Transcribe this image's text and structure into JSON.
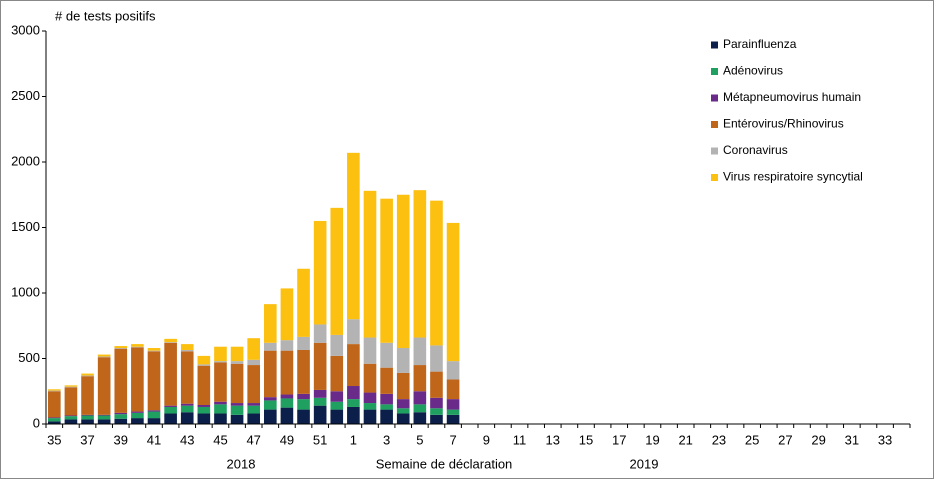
{
  "chart_data": {
    "type": "stacked_bar",
    "y_label": "# de tests positifs",
    "x_label": "Semaine de déclaration",
    "annotations": [
      "2018",
      "2019"
    ],
    "categories": [
      "35",
      null,
      "37",
      null,
      "39",
      null,
      "41",
      null,
      "43",
      null,
      "45",
      null,
      "47",
      null,
      "49",
      null,
      "51",
      null,
      "1",
      null,
      "3",
      null,
      "5",
      null,
      "7",
      null,
      "9",
      null,
      "11",
      null,
      "13",
      null,
      "15",
      null,
      "17",
      null,
      "19",
      null,
      "21",
      null,
      "23",
      null,
      "25",
      null,
      "27",
      null,
      "29",
      null,
      "31",
      null,
      "33",
      null
    ],
    "series": [
      {
        "name": "Parainfluenza",
        "color": "#0c1f4a",
        "values": [
          20,
          35,
          35,
          35,
          40,
          45,
          45,
          80,
          90,
          80,
          80,
          70,
          80,
          110,
          125,
          110,
          140,
          110,
          130,
          110,
          110,
          80,
          90,
          70,
          70,
          null,
          null,
          null,
          null,
          null,
          null,
          null,
          null,
          null,
          null,
          null,
          null,
          null,
          null,
          null,
          null,
          null,
          null,
          null,
          null,
          null,
          null,
          null,
          null,
          null,
          null,
          null
        ]
      },
      {
        "name": "Adénovirus",
        "color": "#1fa060",
        "values": [
          25,
          25,
          30,
          30,
          35,
          40,
          50,
          50,
          50,
          50,
          70,
          70,
          60,
          70,
          70,
          80,
          60,
          60,
          60,
          50,
          40,
          40,
          60,
          50,
          40,
          null,
          null,
          null,
          null,
          null,
          null,
          null,
          null,
          null,
          null,
          null,
          null,
          null,
          null,
          null,
          null,
          null,
          null,
          null,
          null,
          null,
          null,
          null,
          null,
          null,
          null,
          null
        ]
      },
      {
        "name": "Métapneumovirus humain",
        "color": "#6a2a8a",
        "values": [
          5,
          5,
          5,
          5,
          10,
          10,
          10,
          10,
          15,
          15,
          20,
          20,
          20,
          25,
          30,
          40,
          60,
          80,
          100,
          80,
          80,
          70,
          100,
          80,
          80,
          null,
          null,
          null,
          null,
          null,
          null,
          null,
          null,
          null,
          null,
          null,
          null,
          null,
          null,
          null,
          null,
          null,
          null,
          null,
          null,
          null,
          null,
          null,
          null,
          null,
          null,
          null
        ]
      },
      {
        "name": "Entérovirus/Rhinovirus",
        "color": "#c0661b",
        "values": [
          200,
          215,
          295,
          440,
          490,
          490,
          450,
          480,
          400,
          300,
          300,
          300,
          290,
          355,
          335,
          335,
          360,
          270,
          320,
          220,
          200,
          200,
          200,
          200,
          150,
          null,
          null,
          null,
          null,
          null,
          null,
          null,
          null,
          null,
          null,
          null,
          null,
          null,
          null,
          null,
          null,
          null,
          null,
          null,
          null,
          null,
          null,
          null,
          null,
          null,
          null,
          null
        ]
      },
      {
        "name": "Coronavirus",
        "color": "#b3b3b3",
        "values": [
          5,
          5,
          5,
          5,
          5,
          5,
          5,
          5,
          10,
          10,
          10,
          20,
          40,
          60,
          80,
          100,
          140,
          160,
          190,
          200,
          190,
          190,
          210,
          200,
          140,
          null,
          null,
          null,
          null,
          null,
          null,
          null,
          null,
          null,
          null,
          null,
          null,
          null,
          null,
          null,
          null,
          null,
          null,
          null,
          null,
          null,
          null,
          null,
          null,
          null,
          null,
          null
        ]
      },
      {
        "name": "Virus respiratoire syncytial",
        "color": "#fcc010",
        "values": [
          10,
          10,
          15,
          15,
          15,
          20,
          20,
          25,
          45,
          65,
          110,
          110,
          165,
          295,
          395,
          520,
          790,
          970,
          1270,
          1120,
          1100,
          1170,
          1125,
          1105,
          1055,
          null,
          null,
          null,
          null,
          null,
          null,
          null,
          null,
          null,
          null,
          null,
          null,
          null,
          null,
          null,
          null,
          null,
          null,
          null,
          null,
          null,
          null,
          null,
          null,
          null,
          null,
          null
        ]
      }
    ],
    "ylim": [
      0,
      3000
    ],
    "yticks": [
      0,
      500,
      1000,
      1500,
      2000,
      2500,
      3000
    ],
    "grid": false,
    "legend": "upper right"
  }
}
